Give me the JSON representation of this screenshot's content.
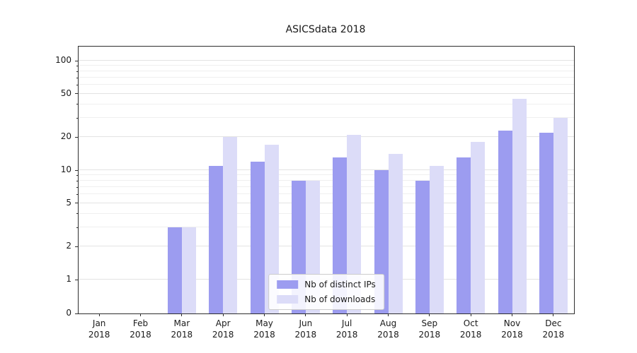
{
  "chart_data": {
    "type": "bar",
    "title": "ASICSdata 2018",
    "categories": [
      "Jan 2018",
      "Feb 2018",
      "Mar 2018",
      "Apr 2018",
      "May 2018",
      "Jun 2018",
      "Jul 2018",
      "Aug 2018",
      "Sep 2018",
      "Oct 2018",
      "Nov 2018",
      "Dec 2018"
    ],
    "series": [
      {
        "name": "Nb of distinct IPs",
        "color": "#9c9cf0",
        "values": [
          0,
          0,
          3,
          11,
          12,
          8,
          13,
          10,
          8,
          13,
          23,
          22
        ]
      },
      {
        "name": "Nb of downloads",
        "color": "#dcdcf8",
        "values": [
          0,
          0,
          3,
          20,
          17,
          8,
          21,
          14,
          11,
          18,
          45,
          30
        ]
      }
    ],
    "yscale": "symlog",
    "ylim": [
      0,
      135
    ],
    "yticks": [
      0,
      1,
      2,
      5,
      10,
      20,
      50,
      100
    ],
    "ytick_labels": [
      "0",
      "1",
      "2",
      "5",
      "10",
      "20",
      "50",
      "100"
    ],
    "minor_yticks": [
      3,
      4,
      6,
      7,
      8,
      9,
      30,
      40,
      60,
      70,
      80,
      90
    ],
    "grid": true,
    "legend_position": "lower center (inside plot)"
  },
  "colors": {
    "spine": "#2e2e2e",
    "grid_major": "#e3e3e3",
    "grid_minor": "#efefef",
    "text": "#1a1a1a"
  }
}
